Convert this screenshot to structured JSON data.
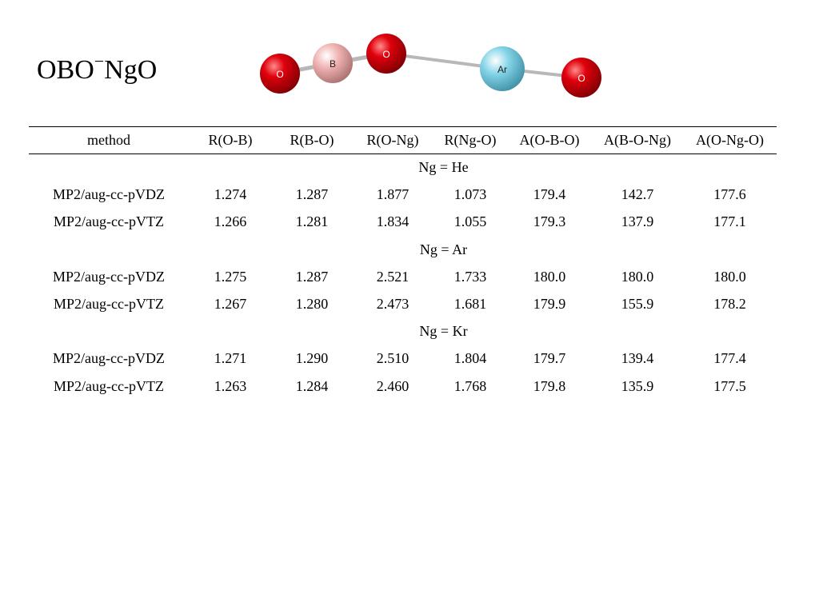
{
  "title": {
    "main_before": "OBO",
    "superscript": "−",
    "main_after": "NgO"
  },
  "molecule": {
    "atoms": [
      {
        "label": "O",
        "color": "#d8000a"
      },
      {
        "label": "B",
        "color": "#f3b6b6"
      },
      {
        "label": "O",
        "color": "#d8000a"
      },
      {
        "label": "Ar",
        "color": "#7fd2e6"
      },
      {
        "label": "O",
        "color": "#d8000a"
      }
    ],
    "bond_color": "#b8b8b8"
  },
  "table": {
    "headers": [
      "method",
      "R(O-B)",
      "R(B-O)",
      "R(O-Ng)",
      "R(Ng-O)",
      "A(O-B-O)",
      "A(B-O-Ng)",
      "A(O-Ng-O)"
    ],
    "groups": [
      {
        "label": "Ng = He",
        "rows": [
          [
            "MP2/aug-cc-pVDZ",
            "1.274",
            "1.287",
            "1.877",
            "1.073",
            "179.4",
            "142.7",
            "177.6"
          ],
          [
            "MP2/aug-cc-pVTZ",
            "1.266",
            "1.281",
            "1.834",
            "1.055",
            "179.3",
            "137.9",
            "177.1"
          ]
        ]
      },
      {
        "label": "Ng = Ar",
        "rows": [
          [
            "MP2/aug-cc-pVDZ",
            "1.275",
            "1.287",
            "2.521",
            "1.733",
            "180.0",
            "180.0",
            "180.0"
          ],
          [
            "MP2/aug-cc-pVTZ",
            "1.267",
            "1.280",
            "2.473",
            "1.681",
            "179.9",
            "155.9",
            "178.2"
          ]
        ]
      },
      {
        "label": "Ng = Kr",
        "rows": [
          [
            "MP2/aug-cc-pVDZ",
            "1.271",
            "1.290",
            "2.510",
            "1.804",
            "179.7",
            "139.4",
            "177.4"
          ],
          [
            "MP2/aug-cc-pVTZ",
            "1.263",
            "1.284",
            "2.460",
            "1.768",
            "179.8",
            "135.9",
            "177.5"
          ]
        ]
      }
    ]
  }
}
